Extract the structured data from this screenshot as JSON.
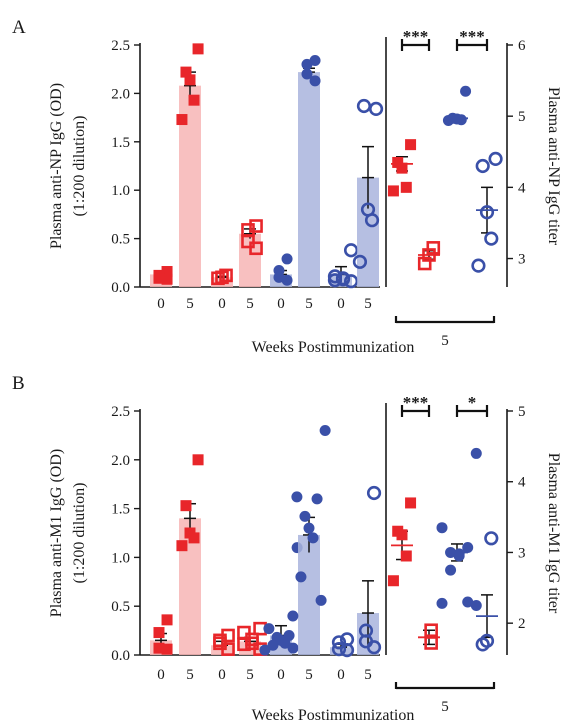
{
  "colors": {
    "red": "#e8262a",
    "red_fill": "#f7b5b5",
    "blue": "#3a50a8",
    "blue_fill": "#a9b4dd",
    "axis": "#1a1a1a"
  },
  "chart_data": [
    {
      "panel": "A",
      "type": "bar",
      "xlabel": "Weeks Postimmunization",
      "ylabel": "Plasma anti-NP IgG (OD)",
      "ylabel_sub": "(1:200 dilution)",
      "ylim": [
        0,
        2.5
      ],
      "yticks": [
        "0.0",
        "0.5",
        "1.0",
        "1.5",
        "2.0",
        "2.5"
      ],
      "categories": [
        "0",
        "5",
        "0",
        "5",
        "0",
        "5",
        "0",
        "5"
      ],
      "groups": [
        {
          "color": "red",
          "marker": "square-filled",
          "mean": 0.13,
          "err": 0.03,
          "points": [
            0.16,
            0.12,
            0.09,
            0.08
          ]
        },
        {
          "color": "red",
          "marker": "square-filled",
          "mean": 2.08,
          "err": 0.14,
          "points": [
            2.46,
            2.22,
            2.14,
            1.93,
            1.73
          ]
        },
        {
          "color": "red",
          "marker": "square-open",
          "mean": 0.1,
          "err": 0.01,
          "points": [
            0.12,
            0.1,
            0.09
          ]
        },
        {
          "color": "red",
          "marker": "square-open",
          "mean": 0.55,
          "err": 0.05,
          "points": [
            0.63,
            0.59,
            0.47,
            0.4
          ]
        },
        {
          "color": "blue",
          "marker": "circle-filled",
          "mean": 0.13,
          "err": 0.04,
          "points": [
            0.29,
            0.17,
            0.1,
            0.07
          ]
        },
        {
          "color": "blue",
          "marker": "circle-filled",
          "mean": 2.22,
          "err": 0.04,
          "points": [
            2.34,
            2.3,
            2.2,
            2.13
          ]
        },
        {
          "color": "blue",
          "marker": "circle-open",
          "mean": 0.13,
          "err": 0.08,
          "points": [
            0.38,
            0.11,
            0.09,
            0.08,
            0.07,
            0.06
          ]
        },
        {
          "color": "blue",
          "marker": "circle-open",
          "mean": 1.13,
          "err": 0.32,
          "points": [
            1.84,
            1.87,
            0.8,
            0.69,
            0.26
          ]
        }
      ],
      "right": {
        "ylabel": "Plasma anti-NP IgG titer",
        "ylim": [
          2.6,
          6
        ],
        "yticks": [
          "3",
          "4",
          "5",
          "6"
        ],
        "xlabel": "5",
        "groups": [
          {
            "color": "red",
            "marker": "square-filled",
            "mean": 4.33,
            "err": 0.1,
            "points": [
              4.6,
              4.35,
              4.27,
              4.0,
              3.95
            ]
          },
          {
            "color": "red",
            "marker": "square-open",
            "mean": 3.05,
            "err": 0.06,
            "points": [
              3.15,
              3.05,
              2.93
            ]
          },
          {
            "color": "blue",
            "marker": "circle-filled",
            "mean": 4.97,
            "err": 0.04,
            "points": [
              5.35,
              4.97,
              4.96,
              4.95,
              4.94
            ]
          },
          {
            "color": "blue",
            "marker": "circle-open",
            "mean": 3.68,
            "err": 0.32,
            "points": [
              4.4,
              4.3,
              3.65,
              3.28,
              2.9
            ]
          }
        ],
        "significance": [
          {
            "pair": [
              0,
              1
            ],
            "label": "***"
          },
          {
            "pair": [
              2,
              3
            ],
            "label": "***"
          }
        ]
      }
    },
    {
      "panel": "B",
      "type": "bar",
      "xlabel": "Weeks Postimmunization",
      "ylabel": "Plasma anti-M1 IgG (OD)",
      "ylabel_sub": "(1:200 dilution)",
      "ylim": [
        0,
        2.5
      ],
      "yticks": [
        "0.0",
        "0.5",
        "1.0",
        "1.5",
        "2.0",
        "2.5"
      ],
      "categories": [
        "0",
        "5",
        "0",
        "5",
        "0",
        "5",
        "0",
        "5"
      ],
      "groups": [
        {
          "color": "red",
          "marker": "square-filled",
          "mean": 0.15,
          "err": 0.07,
          "points": [
            0.36,
            0.23,
            0.07,
            0.06
          ]
        },
        {
          "color": "red",
          "marker": "square-filled",
          "mean": 1.4,
          "err": 0.15,
          "points": [
            2.0,
            1.53,
            1.25,
            1.2,
            1.12
          ]
        },
        {
          "color": "red",
          "marker": "square-open",
          "mean": 0.1,
          "err": 0.04,
          "points": [
            0.2,
            0.15,
            0.12,
            0.06
          ]
        },
        {
          "color": "red",
          "marker": "square-open",
          "mean": 0.14,
          "err": 0.04,
          "points": [
            0.27,
            0.23,
            0.16,
            0.12,
            0.11,
            0.06
          ]
        },
        {
          "color": "blue",
          "marker": "circle-filled",
          "mean": 0.2,
          "err": 0.1,
          "points": [
            1.1,
            0.27,
            0.2,
            0.18,
            0.15,
            0.12,
            0.1,
            0.07,
            0.05
          ]
        },
        {
          "color": "blue",
          "marker": "circle-filled",
          "mean": 1.23,
          "err": 0.18,
          "points": [
            2.3,
            1.62,
            1.6,
            1.42,
            1.3,
            1.2,
            0.8,
            0.56,
            0.4
          ]
        },
        {
          "color": "blue",
          "marker": "circle-open",
          "mean": 0.08,
          "err": 0.03,
          "points": [
            0.16,
            0.13,
            0.06,
            0.05
          ]
        },
        {
          "color": "blue",
          "marker": "circle-open",
          "mean": 0.43,
          "err": 0.33,
          "points": [
            1.66,
            0.25,
            0.14,
            0.08
          ]
        }
      ],
      "right": {
        "ylabel": "Plasma anti-M1 IgG titer",
        "ylim": [
          1.55,
          5
        ],
        "yticks": [
          "2",
          "3",
          "4",
          "5"
        ],
        "xlabel": "5",
        "groups": [
          {
            "color": "red",
            "marker": "square-filled",
            "mean": 3.1,
            "err": 0.2,
            "points": [
              3.7,
              3.3,
              3.25,
              2.95,
              2.6
            ]
          },
          {
            "color": "red",
            "marker": "square-open",
            "mean": 1.8,
            "err": 0.1,
            "points": [
              1.9,
              1.72
            ]
          },
          {
            "color": "blue",
            "marker": "circle-filled",
            "mean": 3.0,
            "err": 0.12,
            "points": [
              4.4,
              3.35,
              3.07,
              3.0,
              2.98,
              2.95,
              2.75,
              2.3,
              2.28,
              2.25
            ]
          },
          {
            "color": "blue",
            "marker": "circle-open",
            "mean": 2.1,
            "err": 0.3,
            "points": [
              3.2,
              1.75,
              1.7
            ]
          }
        ],
        "significance": [
          {
            "pair": [
              0,
              1
            ],
            "label": "***"
          },
          {
            "pair": [
              2,
              3
            ],
            "label": "*"
          }
        ]
      }
    }
  ]
}
